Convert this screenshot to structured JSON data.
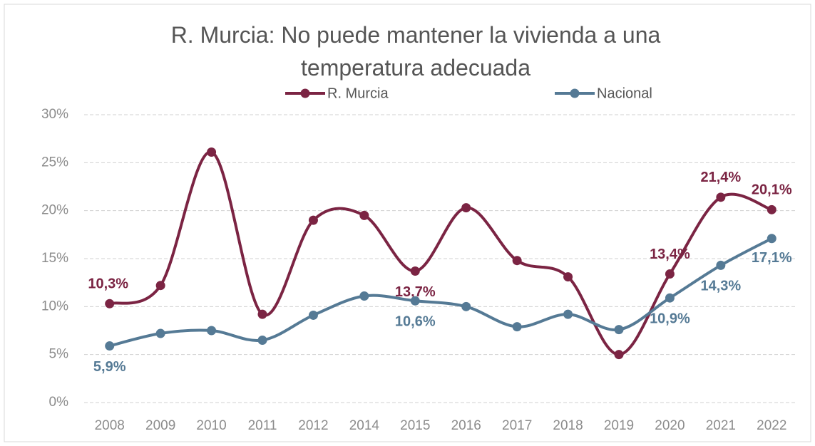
{
  "chart_data": {
    "type": "line",
    "title": "R. Murcia: No puede mantener la vivienda a una temperatura adecuada",
    "categories": [
      "2008",
      "2009",
      "2010",
      "2011",
      "2012",
      "2014",
      "2015",
      "2016",
      "2017",
      "2018",
      "2019",
      "2020",
      "2021",
      "2022"
    ],
    "series": [
      {
        "name": "R. Murcia",
        "color": "#7b2443",
        "values": [
          10.3,
          12.2,
          26.1,
          9.2,
          19.0,
          19.5,
          13.7,
          20.3,
          14.8,
          13.1,
          5.0,
          13.4,
          21.4,
          20.1
        ],
        "value_labels": [
          "10,3%",
          null,
          null,
          null,
          null,
          null,
          "13,7%",
          null,
          null,
          null,
          null,
          "13,4%",
          "21,4%",
          "20,1%"
        ]
      },
      {
        "name": "Nacional",
        "color": "#557a95",
        "values": [
          5.9,
          7.2,
          7.5,
          6.5,
          9.1,
          11.1,
          10.6,
          10.0,
          7.9,
          9.2,
          7.6,
          10.9,
          14.3,
          17.1
        ],
        "value_labels": [
          "5,9%",
          null,
          null,
          null,
          null,
          null,
          "10,6%",
          null,
          null,
          null,
          null,
          "10,9%",
          "14,3%",
          "17,1%"
        ]
      }
    ],
    "ylim": [
      0,
      30
    ],
    "yticks": [
      {
        "value": 0,
        "label": "0%"
      },
      {
        "value": 5,
        "label": "5%"
      },
      {
        "value": 10,
        "label": "10%"
      },
      {
        "value": 15,
        "label": "15%"
      },
      {
        "value": 20,
        "label": "20%"
      },
      {
        "value": 25,
        "label": "25%"
      },
      {
        "value": 30,
        "label": "30%"
      }
    ],
    "grid": true,
    "legend": "top"
  }
}
